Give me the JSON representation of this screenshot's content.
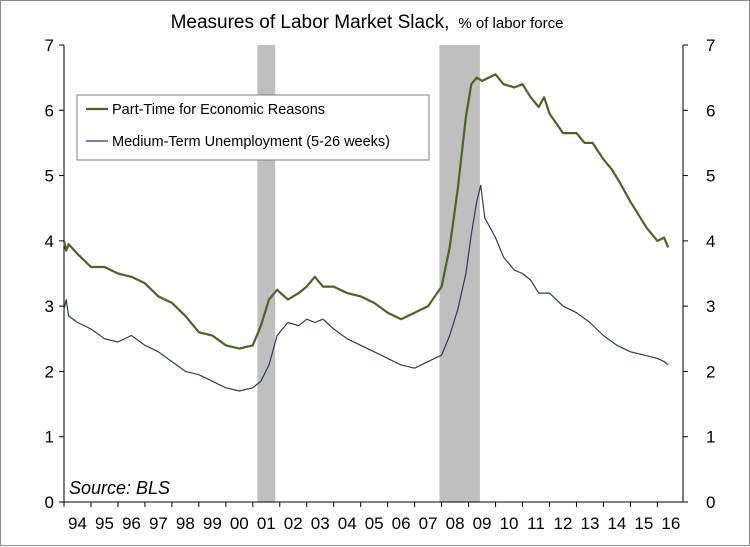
{
  "chart_data": {
    "type": "line",
    "title": "Measures of Labor Market Slack,",
    "subtitle": "% of labor force",
    "source_note": "Source: BLS",
    "x_ticks": [
      "94",
      "95",
      "96",
      "97",
      "98",
      "99",
      "00",
      "01",
      "02",
      "03",
      "04",
      "05",
      "06",
      "07",
      "08",
      "09",
      "10",
      "11",
      "12",
      "13",
      "14",
      "15",
      "16"
    ],
    "y_ticks": [
      "0",
      "1",
      "2",
      "3",
      "4",
      "5",
      "6",
      "7"
    ],
    "ylim": [
      0,
      7
    ],
    "xlim": [
      1994.0,
      2016.95
    ],
    "grid": false,
    "legend_position": "top-left",
    "recessions": [
      {
        "start": 2001.17,
        "end": 2001.83
      },
      {
        "start": 2007.92,
        "end": 2009.42
      }
    ],
    "series": [
      {
        "name": "Part-Time for Economic Reasons",
        "color": "#4f6228",
        "x": [
          1994.0,
          1994.08,
          1994.17,
          1994.5,
          1995.0,
          1995.5,
          1996.0,
          1996.5,
          1997.0,
          1997.5,
          1998.0,
          1998.5,
          1999.0,
          1999.5,
          2000.0,
          2000.5,
          2001.0,
          2001.3,
          2001.6,
          2001.9,
          2002.3,
          2002.7,
          2003.0,
          2003.3,
          2003.6,
          2004.0,
          2004.5,
          2005.0,
          2005.5,
          2006.0,
          2006.5,
          2007.0,
          2007.5,
          2008.0,
          2008.3,
          2008.6,
          2008.9,
          2009.1,
          2009.3,
          2009.5,
          2009.75,
          2010.0,
          2010.3,
          2010.7,
          2011.0,
          2011.3,
          2011.6,
          2011.8,
          2012.0,
          2012.5,
          2013.0,
          2013.3,
          2013.6,
          2014.0,
          2014.3,
          2014.6,
          2015.0,
          2015.3,
          2015.6,
          2016.0,
          2016.25,
          2016.4
        ],
        "values": [
          4.0,
          3.85,
          3.95,
          3.8,
          3.6,
          3.6,
          3.5,
          3.45,
          3.35,
          3.15,
          3.05,
          2.85,
          2.6,
          2.55,
          2.4,
          2.35,
          2.4,
          2.7,
          3.1,
          3.25,
          3.1,
          3.2,
          3.3,
          3.45,
          3.3,
          3.3,
          3.2,
          3.15,
          3.05,
          2.9,
          2.8,
          2.9,
          3.0,
          3.3,
          3.9,
          4.8,
          5.9,
          6.4,
          6.5,
          6.45,
          6.5,
          6.55,
          6.4,
          6.35,
          6.4,
          6.2,
          6.05,
          6.2,
          5.95,
          5.65,
          5.65,
          5.5,
          5.5,
          5.25,
          5.1,
          4.9,
          4.6,
          4.4,
          4.2,
          4.0,
          4.05,
          3.9
        ]
      },
      {
        "name": "Medium-Term Unemployment (5-26 weeks)",
        "color": "#2f3c55",
        "x": [
          1994.0,
          1994.08,
          1994.17,
          1994.5,
          1995.0,
          1995.5,
          1996.0,
          1996.5,
          1997.0,
          1997.5,
          1998.0,
          1998.5,
          1999.0,
          1999.5,
          2000.0,
          2000.5,
          2001.0,
          2001.3,
          2001.6,
          2001.9,
          2002.3,
          2002.7,
          2003.0,
          2003.3,
          2003.6,
          2004.0,
          2004.5,
          2005.0,
          2005.5,
          2006.0,
          2006.5,
          2007.0,
          2007.5,
          2008.0,
          2008.3,
          2008.6,
          2008.9,
          2009.1,
          2009.3,
          2009.45,
          2009.6,
          2009.8,
          2010.0,
          2010.3,
          2010.7,
          2011.0,
          2011.3,
          2011.6,
          2012.0,
          2012.5,
          2013.0,
          2013.5,
          2014.0,
          2014.5,
          2015.0,
          2015.5,
          2016.0,
          2016.25,
          2016.4
        ],
        "values": [
          2.95,
          3.1,
          2.85,
          2.75,
          2.65,
          2.5,
          2.45,
          2.55,
          2.4,
          2.3,
          2.15,
          2.0,
          1.95,
          1.85,
          1.75,
          1.7,
          1.75,
          1.85,
          2.1,
          2.55,
          2.75,
          2.7,
          2.8,
          2.75,
          2.8,
          2.65,
          2.5,
          2.4,
          2.3,
          2.2,
          2.1,
          2.05,
          2.15,
          2.25,
          2.55,
          2.95,
          3.5,
          4.1,
          4.6,
          4.85,
          4.35,
          4.2,
          4.05,
          3.75,
          3.55,
          3.5,
          3.4,
          3.2,
          3.2,
          3.0,
          2.9,
          2.75,
          2.55,
          2.4,
          2.3,
          2.25,
          2.2,
          2.15,
          2.1
        ]
      }
    ]
  }
}
